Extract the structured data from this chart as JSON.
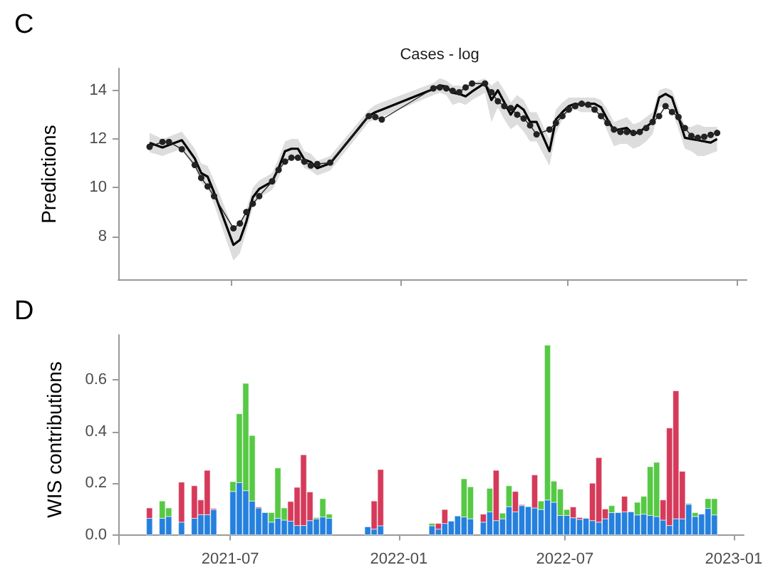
{
  "chart_data": [
    {
      "type": "line",
      "title": "Cases - log",
      "ylabel": "Predictions",
      "annotations": [
        "C"
      ],
      "x": [
        "2021-04-04",
        "2021-04-18",
        "2021-04-25",
        "2021-05-09",
        "2021-05-23",
        "2021-05-30",
        "2021-06-06",
        "2021-06-13",
        "2021-07-04",
        "2021-07-11",
        "2021-07-18",
        "2021-07-25",
        "2021-08-01",
        "2021-08-15",
        "2021-08-22",
        "2021-08-29",
        "2021-09-05",
        "2021-09-12",
        "2021-09-19",
        "2021-09-26",
        "2021-10-03",
        "2021-10-17",
        "2021-11-28",
        "2021-12-05",
        "2021-12-12",
        "2022-02-06",
        "2022-02-13",
        "2022-02-20",
        "2022-02-27",
        "2022-03-06",
        "2022-03-13",
        "2022-03-20",
        "2022-04-03",
        "2022-04-10",
        "2022-04-17",
        "2022-04-24",
        "2022-05-01",
        "2022-05-08",
        "2022-05-15",
        "2022-05-22",
        "2022-05-29",
        "2022-06-12",
        "2022-06-19",
        "2022-06-26",
        "2022-07-03",
        "2022-07-10",
        "2022-07-17",
        "2022-07-24",
        "2022-07-31",
        "2022-08-07",
        "2022-08-14",
        "2022-08-21",
        "2022-08-28",
        "2022-09-04",
        "2022-09-11",
        "2022-09-18",
        "2022-09-25",
        "2022-10-02",
        "2022-10-09",
        "2022-10-16",
        "2022-10-23",
        "2022-10-30",
        "2022-11-06",
        "2022-11-13",
        "2022-11-20",
        "2022-11-27",
        "2022-12-04",
        "2022-12-11"
      ],
      "series": [
        {
          "color": "#000000",
          "marker": "none",
          "values": [
            11.84,
            11.65,
            11.75,
            11.95,
            11.2,
            10.6,
            10.45,
            9.8,
            7.65,
            7.85,
            8.6,
            9.6,
            9.95,
            10.25,
            10.8,
            11.5,
            11.6,
            11.6,
            11.15,
            11.05,
            10.8,
            11.0,
            12.95,
            13.1,
            13.2,
            14.05,
            14.2,
            14.15,
            13.9,
            13.85,
            13.75,
            13.95,
            14.3,
            13.6,
            14.0,
            13.5,
            13.0,
            13.4,
            13.2,
            12.7,
            12.7,
            11.5,
            12.8,
            13.1,
            13.35,
            13.45,
            13.4,
            13.45,
            13.45,
            13.3,
            12.8,
            12.35,
            12.4,
            12.45,
            12.2,
            12.3,
            12.5,
            12.7,
            13.7,
            13.85,
            13.7,
            12.9,
            12.05,
            12.0,
            11.95,
            11.9,
            11.85,
            12.0
          ],
          "lower": [
            11.45,
            11.3,
            11.4,
            11.6,
            10.8,
            10.2,
            10.0,
            9.3,
            7.0,
            7.3,
            8.2,
            9.2,
            9.6,
            9.9,
            10.4,
            11.1,
            11.2,
            11.2,
            10.8,
            10.7,
            10.5,
            10.7,
            12.7,
            12.8,
            12.9,
            13.8,
            13.9,
            13.8,
            13.4,
            13.5,
            13.4,
            13.6,
            13.9,
            12.7,
            13.3,
            12.8,
            12.4,
            12.6,
            12.3,
            11.9,
            11.9,
            10.9,
            12.2,
            12.8,
            13.1,
            13.2,
            13.1,
            13.1,
            13.1,
            12.9,
            12.3,
            11.7,
            11.8,
            11.8,
            11.6,
            11.7,
            11.9,
            12.2,
            13.3,
            13.4,
            13.2,
            12.4,
            11.6,
            11.5,
            11.3,
            11.3,
            11.4,
            11.5
          ],
          "upper": [
            12.25,
            12.0,
            12.1,
            12.3,
            11.6,
            11.0,
            10.9,
            10.3,
            8.3,
            8.5,
            9.1,
            10.0,
            10.3,
            10.6,
            11.2,
            11.9,
            12.0,
            12.0,
            11.5,
            11.4,
            11.1,
            11.3,
            13.2,
            13.4,
            13.5,
            14.3,
            14.5,
            14.4,
            14.2,
            14.2,
            14.1,
            14.3,
            14.5,
            14.2,
            14.4,
            14.0,
            13.5,
            13.8,
            13.6,
            13.1,
            13.1,
            12.0,
            13.2,
            13.5,
            13.7,
            13.7,
            13.7,
            13.7,
            13.7,
            13.6,
            13.2,
            12.7,
            12.8,
            12.9,
            12.6,
            12.7,
            12.9,
            13.1,
            14.0,
            14.1,
            14.0,
            13.3,
            12.5,
            12.5,
            12.6,
            12.5,
            12.5,
            12.5
          ]
        },
        {
          "color": "#222222",
          "marker": "circle",
          "values": [
            11.68,
            11.88,
            11.88,
            11.58,
            10.93,
            10.4,
            10.05,
            9.65,
            8.33,
            8.53,
            9.0,
            9.34,
            9.65,
            10.26,
            10.73,
            11.07,
            11.23,
            11.23,
            11.07,
            10.91,
            10.97,
            11.03,
            12.94,
            12.9,
            12.8,
            14.08,
            14.12,
            14.08,
            13.98,
            13.92,
            14.12,
            14.28,
            14.28,
            13.92,
            13.55,
            13.35,
            13.27,
            13.0,
            12.84,
            12.56,
            12.19,
            12.39,
            12.66,
            12.94,
            13.21,
            13.35,
            13.45,
            13.41,
            13.21,
            12.94,
            12.66,
            12.39,
            12.29,
            12.29,
            12.25,
            12.29,
            12.45,
            12.7,
            12.94,
            13.35,
            13.11,
            12.9,
            12.45,
            12.13,
            12.05,
            12.09,
            12.17,
            12.25
          ]
        }
      ],
      "xlim": [
        "2021-03-01",
        "2023-01-12"
      ],
      "xticks": [
        {
          "value": "2021-07",
          "label": null
        },
        {
          "value": "2022-01",
          "label": null
        },
        {
          "value": "2022-07",
          "label": null
        },
        {
          "value": "2023-01",
          "label": null
        }
      ],
      "ylim": [
        6.2,
        14.9
      ],
      "yticks": [
        8,
        10,
        12,
        14
      ],
      "tick_labels": "y"
    },
    {
      "type": "bar",
      "ylabel": "WIS contributions",
      "annotations": [
        "D"
      ],
      "stacked": true,
      "x": [
        "2021-04-04",
        "2021-04-18",
        "2021-04-25",
        "2021-05-09",
        "2021-05-23",
        "2021-05-30",
        "2021-06-06",
        "2021-06-13",
        "2021-07-04",
        "2021-07-11",
        "2021-07-18",
        "2021-07-25",
        "2021-08-01",
        "2021-08-08",
        "2021-08-15",
        "2021-08-22",
        "2021-08-29",
        "2021-09-05",
        "2021-09-12",
        "2021-09-19",
        "2021-09-26",
        "2021-10-03",
        "2021-10-10",
        "2021-10-17",
        "2021-11-28",
        "2021-12-05",
        "2021-12-12",
        "2022-02-06",
        "2022-02-13",
        "2022-02-20",
        "2022-02-27",
        "2022-03-06",
        "2022-03-13",
        "2022-03-20",
        "2022-04-03",
        "2022-04-10",
        "2022-04-17",
        "2022-04-24",
        "2022-05-01",
        "2022-05-08",
        "2022-05-15",
        "2022-05-22",
        "2022-05-29",
        "2022-06-05",
        "2022-06-12",
        "2022-06-19",
        "2022-06-26",
        "2022-07-03",
        "2022-07-10",
        "2022-07-17",
        "2022-07-24",
        "2022-07-31",
        "2022-08-07",
        "2022-08-14",
        "2022-08-21",
        "2022-08-28",
        "2022-09-04",
        "2022-09-11",
        "2022-09-18",
        "2022-09-25",
        "2022-10-02",
        "2022-10-09",
        "2022-10-16",
        "2022-10-23",
        "2022-10-30",
        "2022-11-06",
        "2022-11-13",
        "2022-11-20",
        "2022-11-27",
        "2022-12-04",
        "2022-12-11"
      ],
      "series": [
        {
          "color": "#2580de",
          "values": [
            0.064,
            0.064,
            0.071,
            0.049,
            0.064,
            0.078,
            0.078,
            0.098,
            0.168,
            0.202,
            0.171,
            0.131,
            0.104,
            0.086,
            0.049,
            0.064,
            0.057,
            0.053,
            0.036,
            0.036,
            0.055,
            0.062,
            0.069,
            0.064,
            0.031,
            0.022,
            0.035,
            0.035,
            0.022,
            0.044,
            0.053,
            0.073,
            0.069,
            0.062,
            0.049,
            0.089,
            0.055,
            0.062,
            0.109,
            0.089,
            0.113,
            0.109,
            0.104,
            0.098,
            0.135,
            0.126,
            0.075,
            0.075,
            0.066,
            0.06,
            0.064,
            0.055,
            0.049,
            0.062,
            0.086,
            0.086,
            0.089,
            0.089,
            0.077,
            0.08,
            0.075,
            0.071,
            0.057,
            0.036,
            0.062,
            0.062,
            0.118,
            0.071,
            0.08,
            0.102,
            0.077
          ]
        },
        {
          "color": "#d63a5a",
          "values": [
            0.04,
            null,
            null,
            0.155,
            0.126,
            0.057,
            0.172,
            0.004,
            null,
            null,
            null,
            null,
            0.004,
            null,
            null,
            null,
            null,
            0.076,
            0.148,
            0.274,
            0.111,
            null,
            null,
            null,
            null,
            0.109,
            0.218,
            null,
            0.022,
            0.054,
            null,
            null,
            null,
            null,
            0.031,
            null,
            0.195,
            null,
            null,
            0.079,
            0.004,
            null,
            0.128,
            null,
            null,
            null,
            null,
            null,
            0.042,
            0.007,
            null,
            0.145,
            0.25,
            0.038,
            null,
            null,
            0.06,
            null,
            null,
            null,
            null,
            null,
            0.078,
            0.378,
            0.496,
            0.184,
            null,
            null,
            null,
            null,
            null
          ]
        },
        {
          "color": "#56c944",
          "values": [
            null,
            0.067,
            0.033,
            null,
            null,
            null,
            null,
            null,
            0.038,
            0.267,
            0.416,
            0.254,
            null,
            null,
            0.037,
            0.195,
            0.047,
            null,
            null,
            null,
            null,
            0.005,
            0.071,
            0.016,
            null,
            null,
            null,
            0.009,
            null,
            null,
            null,
            null,
            0.148,
            0.124,
            null,
            0.091,
            null,
            0.022,
            0.081,
            null,
            null,
            null,
            null,
            0.033,
            0.6,
            0.082,
            0.102,
            0.023,
            null,
            null,
            null,
            null,
            null,
            null,
            0.027,
            null,
            null,
            null,
            0.049,
            0.069,
            0.189,
            0.21,
            null,
            null,
            null,
            null,
            0.004,
            0.015,
            null,
            0.038,
            0.063
          ]
        }
      ],
      "xlim": [
        "2021-03-01",
        "2023-01-12"
      ],
      "xticks": [
        "2021-07",
        "2022-01",
        "2022-07",
        "2023-01"
      ],
      "ylim": [
        -0.037,
        0.775
      ],
      "yticks": [
        {
          "value": 0,
          "label": "0.0"
        },
        {
          "value": 0.2,
          "label": "0.2"
        },
        {
          "value": 0.4,
          "label": "0.4"
        },
        {
          "value": 0.6,
          "label": "0.6"
        }
      ]
    }
  ]
}
